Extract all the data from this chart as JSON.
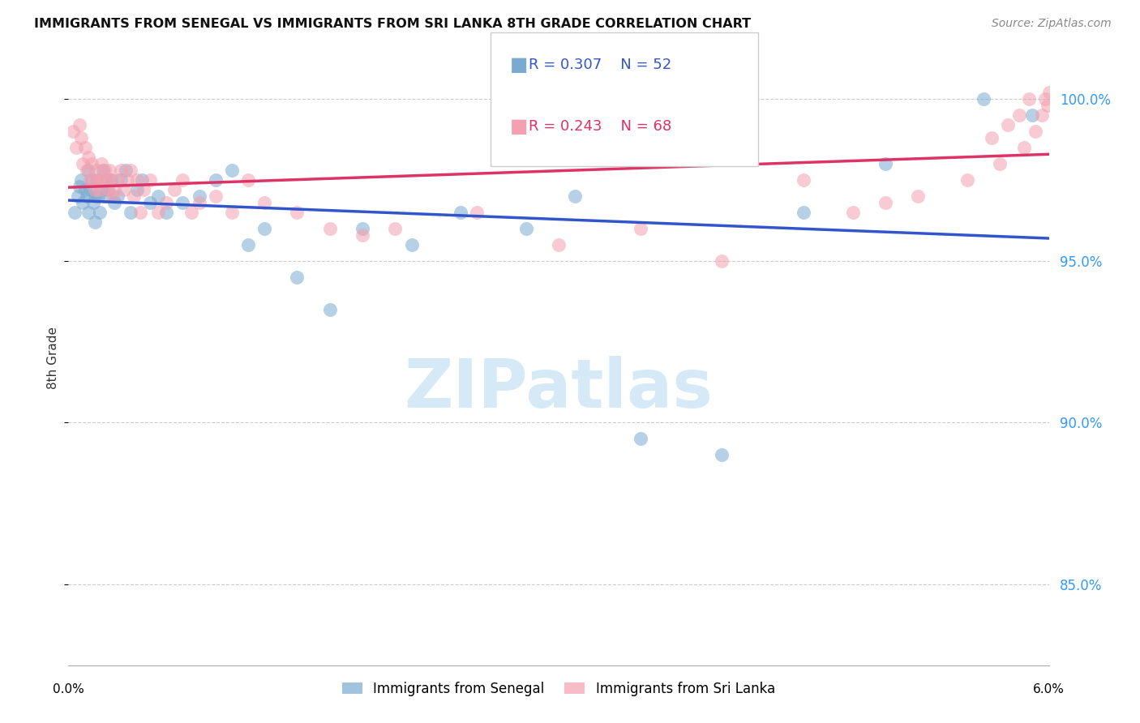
{
  "title": "IMMIGRANTS FROM SENEGAL VS IMMIGRANTS FROM SRI LANKA 8TH GRADE CORRELATION CHART",
  "source": "Source: ZipAtlas.com",
  "ylabel": "8th Grade",
  "yticks": [
    85.0,
    90.0,
    95.0,
    100.0
  ],
  "ytick_labels": [
    "85.0%",
    "90.0%",
    "95.0%",
    "100.0%"
  ],
  "xlim": [
    0.0,
    6.0
  ],
  "ylim": [
    82.5,
    101.5
  ],
  "legend_r1": "R = 0.307",
  "legend_n1": "N = 52",
  "legend_r2": "R = 0.243",
  "legend_n2": "N = 68",
  "watermark": "ZIPatlas",
  "senegal_color": "#7AAAD0",
  "srilanka_color": "#F4A0B0",
  "senegal_line_color": "#3355CC",
  "srilanka_line_color": "#DD3366",
  "senegal_x": [
    0.04,
    0.06,
    0.07,
    0.08,
    0.09,
    0.1,
    0.11,
    0.12,
    0.12,
    0.13,
    0.14,
    0.15,
    0.16,
    0.16,
    0.17,
    0.18,
    0.19,
    0.2,
    0.21,
    0.22,
    0.23,
    0.24,
    0.26,
    0.28,
    0.3,
    0.32,
    0.35,
    0.38,
    0.42,
    0.45,
    0.5,
    0.55,
    0.6,
    0.7,
    0.8,
    0.9,
    1.0,
    1.1,
    1.2,
    1.4,
    1.6,
    1.8,
    2.1,
    2.4,
    2.8,
    3.1,
    3.5,
    4.0,
    4.5,
    5.0,
    5.6,
    5.9
  ],
  "senegal_y": [
    96.5,
    97.0,
    97.3,
    97.5,
    96.8,
    97.2,
    97.0,
    96.5,
    97.8,
    97.2,
    97.5,
    96.8,
    97.0,
    96.2,
    97.5,
    97.0,
    96.5,
    97.2,
    97.8,
    97.0,
    97.5,
    97.2,
    97.5,
    96.8,
    97.0,
    97.5,
    97.8,
    96.5,
    97.2,
    97.5,
    96.8,
    97.0,
    96.5,
    96.8,
    97.0,
    97.5,
    97.8,
    95.5,
    96.0,
    94.5,
    93.5,
    96.0,
    95.5,
    96.5,
    96.0,
    97.0,
    89.5,
    89.0,
    96.5,
    98.0,
    100.0,
    99.5
  ],
  "srilanka_x": [
    0.03,
    0.05,
    0.07,
    0.08,
    0.09,
    0.1,
    0.11,
    0.12,
    0.13,
    0.14,
    0.15,
    0.16,
    0.17,
    0.18,
    0.19,
    0.2,
    0.21,
    0.22,
    0.23,
    0.24,
    0.25,
    0.26,
    0.27,
    0.28,
    0.3,
    0.32,
    0.34,
    0.36,
    0.38,
    0.4,
    0.42,
    0.44,
    0.46,
    0.5,
    0.55,
    0.6,
    0.65,
    0.7,
    0.75,
    0.8,
    0.9,
    1.0,
    1.1,
    1.2,
    1.4,
    1.6,
    1.8,
    2.0,
    2.5,
    3.0,
    3.5,
    4.0,
    4.5,
    4.8,
    5.0,
    5.2,
    5.5,
    5.7,
    5.85,
    5.92,
    5.96,
    5.98,
    5.99,
    6.0,
    5.88,
    5.82,
    5.75,
    5.65
  ],
  "srilanka_y": [
    99.0,
    98.5,
    99.2,
    98.8,
    98.0,
    98.5,
    97.8,
    98.2,
    97.5,
    98.0,
    97.5,
    97.2,
    97.8,
    97.5,
    97.2,
    98.0,
    97.5,
    97.8,
    97.5,
    97.2,
    97.8,
    97.5,
    97.0,
    97.2,
    97.5,
    97.8,
    97.2,
    97.5,
    97.8,
    97.0,
    97.5,
    96.5,
    97.2,
    97.5,
    96.5,
    96.8,
    97.2,
    97.5,
    96.5,
    96.8,
    97.0,
    96.5,
    97.5,
    96.8,
    96.5,
    96.0,
    95.8,
    96.0,
    96.5,
    95.5,
    96.0,
    95.0,
    97.5,
    96.5,
    96.8,
    97.0,
    97.5,
    98.0,
    98.5,
    99.0,
    99.5,
    100.0,
    99.8,
    100.2,
    100.0,
    99.5,
    99.2,
    98.8
  ]
}
